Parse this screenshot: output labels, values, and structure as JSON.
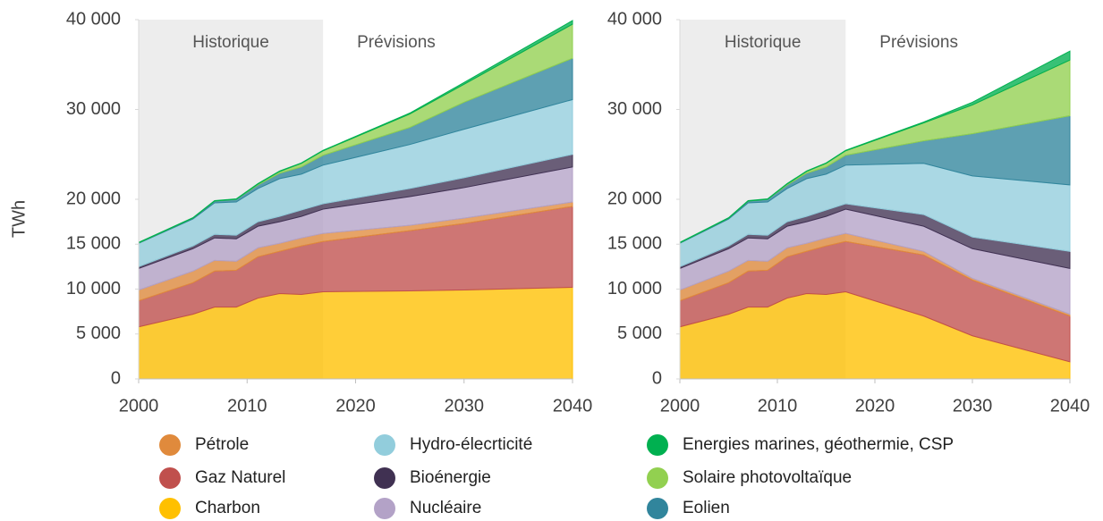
{
  "legend": [
    {
      "name": "Charbon",
      "color": "#ffc000"
    },
    {
      "name": "Gaz Naturel",
      "color": "#c0504d"
    },
    {
      "name": "Pétrole",
      "color": "#e08a3c"
    },
    {
      "name": "Nucléaire",
      "color": "#b3a2c7"
    },
    {
      "name": "Bioénergie",
      "color": "#403152"
    },
    {
      "name": "Hydro-élecrticité",
      "color": "#92cddc"
    },
    {
      "name": "Eolien",
      "color": "#31859c"
    },
    {
      "name": "Solaire photovoltaïque",
      "color": "#92d050"
    },
    {
      "name": "Energies marines, géothermie, CSP",
      "color": "#00b050"
    }
  ],
  "chart_data": [
    {
      "type": "area",
      "stacked": true,
      "y_label": "TWh",
      "annotations": [
        "Historique",
        "Prévisions"
      ],
      "historical_range": [
        2000,
        2017
      ],
      "x": [
        2000,
        2005,
        2007,
        2009,
        2011,
        2013,
        2015,
        2017,
        2025,
        2030,
        2040
      ],
      "xlim": [
        2000,
        2040
      ],
      "xticks": [
        2000,
        2010,
        2020,
        2030,
        2040
      ],
      "ylim": [
        0,
        40000
      ],
      "yticks": [
        0,
        {
          "value": 5000,
          "label": "5 000"
        },
        {
          "value": 10000,
          "label": "10 000"
        },
        {
          "value": 15000,
          "label": "15 000"
        },
        {
          "value": 20000,
          "label": "20 000"
        },
        {
          "value": 30000,
          "label": "30 000"
        },
        {
          "value": 40000,
          "label": "40 000"
        }
      ],
      "series": [
        {
          "values": [
            5800,
            7200,
            8000,
            8000,
            9000,
            9500,
            9400,
            9700,
            9800,
            9900,
            10200
          ]
        },
        {
          "values": [
            2900,
            3500,
            4000,
            4100,
            4600,
            4700,
            5400,
            5600,
            6700,
            7400,
            9000
          ]
        },
        {
          "values": [
            1200,
            1300,
            1200,
            1000,
            1000,
            900,
            900,
            900,
            600,
            600,
            500
          ]
        },
        {
          "values": [
            2400,
            2500,
            2500,
            2500,
            2400,
            2400,
            2400,
            2700,
            3200,
            3400,
            3900
          ]
        },
        {
          "values": [
            200,
            300,
            400,
            400,
            500,
            600,
            700,
            600,
            900,
            1100,
            1400
          ]
        },
        {
          "values": [
            2600,
            3000,
            3500,
            3700,
            3700,
            4200,
            4000,
            4300,
            4900,
            5400,
            6100
          ]
        },
        {
          "values": [
            50,
            100,
            200,
            300,
            400,
            600,
            800,
            1100,
            1900,
            3000,
            4600
          ]
        },
        {
          "values": [
            0,
            0,
            0,
            0,
            100,
            200,
            400,
            500,
            1500,
            2000,
            3800
          ]
        },
        {
          "values": [
            50,
            50,
            50,
            50,
            50,
            50,
            50,
            50,
            100,
            200,
            400
          ]
        }
      ]
    },
    {
      "type": "area",
      "stacked": true,
      "annotations": [
        "Historique",
        "Prévisions"
      ],
      "historical_range": [
        2000,
        2017
      ],
      "x": [
        2000,
        2005,
        2007,
        2009,
        2011,
        2013,
        2015,
        2017,
        2025,
        2030,
        2040
      ],
      "xlim": [
        2000,
        2040
      ],
      "xticks": [
        2000,
        2010,
        2020,
        2030,
        2040
      ],
      "ylim": [
        0,
        40000
      ],
      "yticks": [
        0,
        {
          "value": 5000,
          "label": "5 000"
        },
        {
          "value": 10000,
          "label": "10 000"
        },
        {
          "value": 15000,
          "label": "15 000"
        },
        {
          "value": 20000,
          "label": "20 000"
        },
        {
          "value": 30000,
          "label": "30 000"
        },
        {
          "value": 40000,
          "label": "40 000"
        }
      ],
      "series": [
        {
          "values": [
            5800,
            7200,
            8000,
            8000,
            9000,
            9500,
            9400,
            9700,
            7000,
            4800,
            1900
          ]
        },
        {
          "values": [
            2900,
            3500,
            4000,
            4100,
            4600,
            4700,
            5400,
            5600,
            6800,
            6200,
            5100
          ]
        },
        {
          "values": [
            1200,
            1300,
            1200,
            1000,
            1000,
            900,
            900,
            900,
            400,
            200,
            200
          ]
        },
        {
          "values": [
            2400,
            2500,
            2500,
            2500,
            2400,
            2400,
            2400,
            2700,
            2800,
            3300,
            5100
          ]
        },
        {
          "values": [
            200,
            300,
            400,
            400,
            500,
            600,
            700,
            600,
            1300,
            1300,
            1900
          ]
        },
        {
          "values": [
            2600,
            3000,
            3500,
            3700,
            3700,
            4200,
            4000,
            4300,
            5700,
            6800,
            7400
          ]
        },
        {
          "values": [
            50,
            100,
            200,
            300,
            400,
            600,
            800,
            1100,
            2500,
            4700,
            7700
          ]
        },
        {
          "values": [
            0,
            0,
            0,
            0,
            100,
            200,
            400,
            500,
            2000,
            3200,
            6200
          ]
        },
        {
          "values": [
            50,
            50,
            50,
            50,
            50,
            50,
            50,
            50,
            100,
            300,
            1000
          ]
        }
      ]
    }
  ]
}
